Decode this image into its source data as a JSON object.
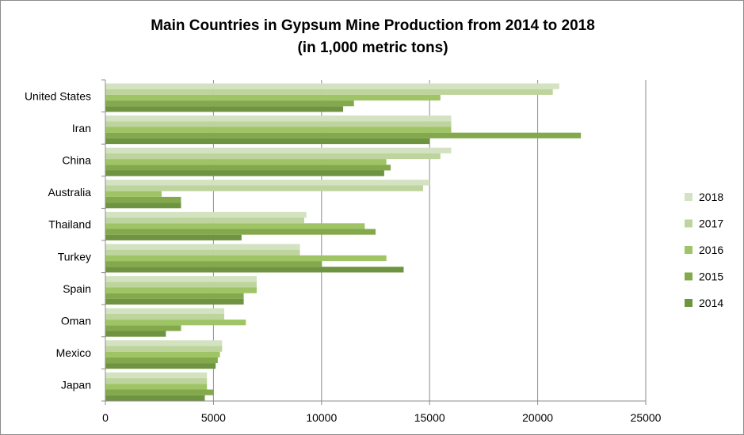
{
  "chart_data": {
    "type": "bar",
    "orientation": "horizontal",
    "title": "Main Countries in Gypsum Mine Production from 2014 to 2018",
    "subtitle": "(in 1,000 metric tons)",
    "categories": [
      "United States",
      "Iran",
      "China",
      "Australia",
      "Thailand",
      "Turkey",
      "Spain",
      "Oman",
      "Mexico",
      "Japan"
    ],
    "series": [
      {
        "name": "2018",
        "color": "#d3e2c0",
        "values": [
          21000,
          16000,
          16000,
          15000,
          9300,
          9000,
          7000,
          5500,
          5400,
          4700
        ]
      },
      {
        "name": "2017",
        "color": "#bed49d",
        "values": [
          20700,
          16000,
          15500,
          14700,
          9200,
          9000,
          7000,
          5500,
          5400,
          4700
        ]
      },
      {
        "name": "2016",
        "color": "#9fc466",
        "values": [
          15500,
          16000,
          13000,
          2600,
          12000,
          13000,
          7000,
          6500,
          5300,
          4700
        ]
      },
      {
        "name": "2015",
        "color": "#84a94d",
        "values": [
          11500,
          22000,
          13200,
          3500,
          12500,
          10000,
          6400,
          3500,
          5200,
          5000
        ]
      },
      {
        "name": "2014",
        "color": "#6f9441",
        "values": [
          11000,
          15000,
          12900,
          3500,
          6300,
          13800,
          6400,
          2800,
          5100,
          4600
        ]
      }
    ],
    "xlim": [
      0,
      25000
    ],
    "xticks": [
      0,
      5000,
      10000,
      15000,
      20000,
      25000
    ],
    "xtick_labels": [
      "0",
      "5000",
      "10000",
      "15000",
      "20000",
      "25000"
    ],
    "grid": true,
    "legend_position": "right"
  }
}
